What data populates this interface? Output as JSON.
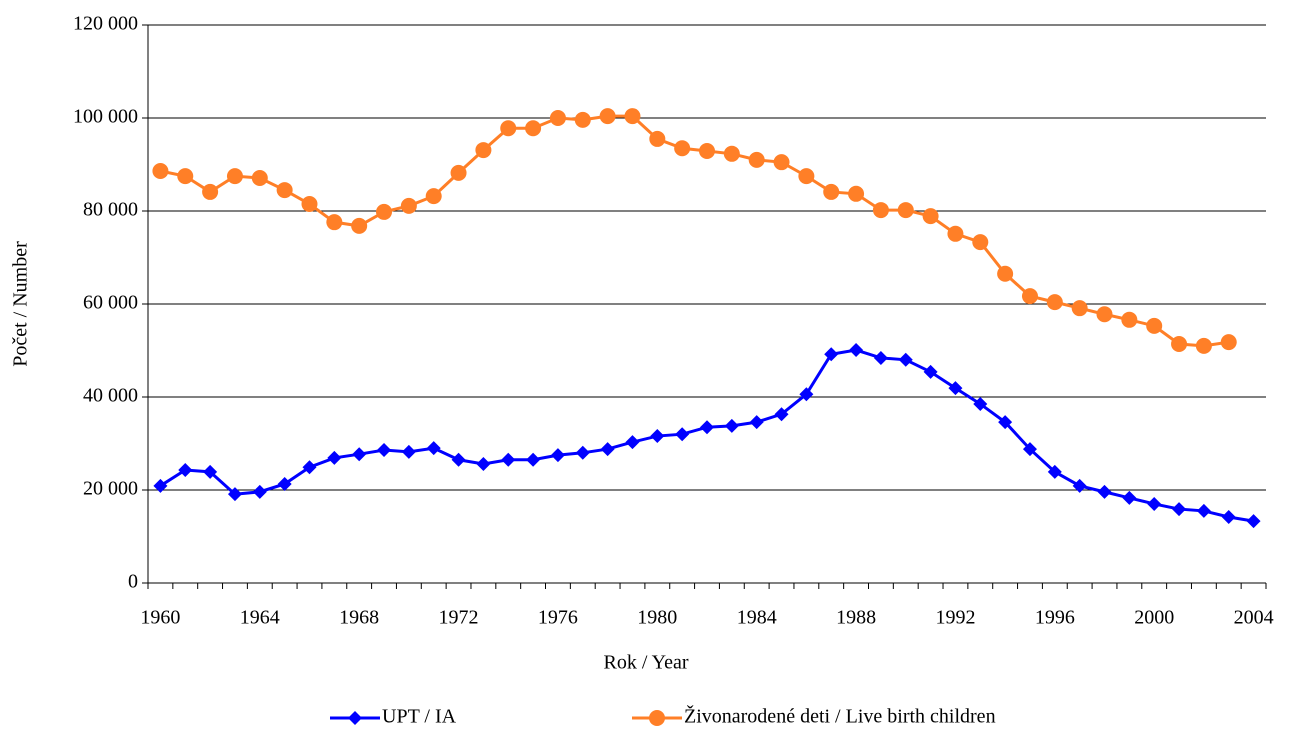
{
  "chart_data": {
    "type": "line",
    "xlabel": "Rok / Year",
    "ylabel": "Počet / Number",
    "categories": [
      "1960",
      null,
      null,
      null,
      "1964",
      null,
      null,
      null,
      "1968",
      null,
      null,
      null,
      "1972",
      null,
      null,
      null,
      "1976",
      null,
      null,
      null,
      "1980",
      null,
      null,
      null,
      "1984",
      null,
      null,
      null,
      "1988",
      null,
      null,
      null,
      "1992",
      null,
      null,
      null,
      "1996",
      null,
      null,
      null,
      "2000",
      null,
      null,
      null,
      "2004"
    ],
    "series": [
      {
        "name": "UPT / IA",
        "color": "#0000ff",
        "marker": "diamond",
        "values": [
          20900,
          24300,
          23900,
          19100,
          19600,
          21300,
          24900,
          26900,
          27700,
          28600,
          28200,
          29000,
          26500,
          25600,
          26500,
          26500,
          27500,
          28000,
          28800,
          30300,
          31600,
          32000,
          33500,
          33800,
          34600,
          36300,
          40600,
          49200,
          50100,
          48400,
          48000,
          45400,
          41900,
          38500,
          34600,
          28800,
          23900,
          20900,
          19600,
          18300,
          17000,
          15900,
          15500,
          14200,
          13300
        ]
      },
      {
        "name": "Živonarodené deti / Live birth children",
        "color": "#ff7f27",
        "marker": "circle",
        "values": [
          88600,
          87500,
          84100,
          87500,
          87100,
          84500,
          81500,
          77600,
          76800,
          79800,
          81100,
          83200,
          88200,
          93100,
          97800,
          97800,
          100000,
          99600,
          100400,
          100400,
          95500,
          93500,
          92900,
          92300,
          91000,
          90500,
          87500,
          84100,
          83700,
          80200,
          80200,
          78900,
          75100,
          73300,
          66500,
          61700,
          60400,
          59100,
          57800,
          56600,
          55300,
          51400,
          51000,
          51800,
          null
        ]
      }
    ],
    "ylim": [
      0,
      120000
    ],
    "yticks": [
      0,
      {
        "value": 20000,
        "label": "20 000"
      },
      {
        "value": 40000,
        "label": "40 000"
      },
      {
        "value": 60000,
        "label": "60 000"
      },
      {
        "value": 80000,
        "label": "80 000"
      },
      {
        "value": 100000,
        "label": "100 000"
      },
      {
        "value": 120000,
        "label": "120 000"
      }
    ],
    "grid": true,
    "legend": "bottom"
  }
}
